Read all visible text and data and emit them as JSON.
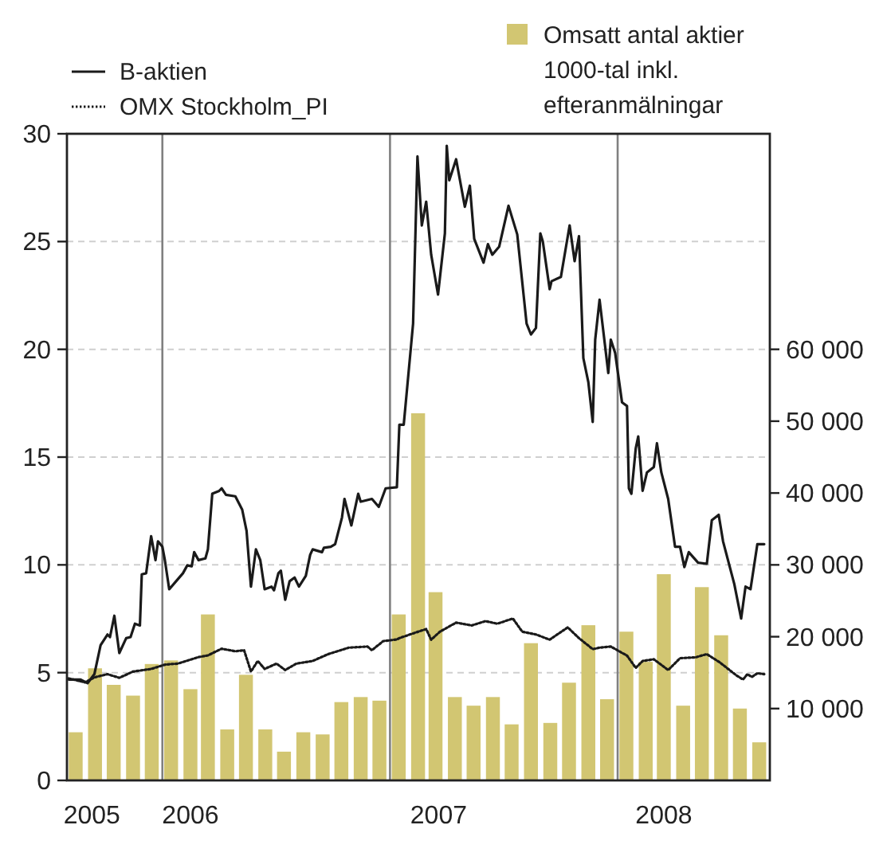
{
  "chart_data": {
    "type": "line",
    "legend": "top",
    "grid": "y",
    "xlim": [
      "2005-08-01",
      "2008-09-01"
    ],
    "xticks": [
      {
        "value": "2005-09-10",
        "label": "2005"
      },
      {
        "value": "2006-02-15",
        "label": "2006"
      },
      {
        "value": "2007-03-20",
        "label": "2007"
      },
      {
        "value": "2008-03-15",
        "label": "2008"
      }
    ],
    "ylim": [
      0,
      30
    ],
    "yticks": [
      0,
      5,
      10,
      15,
      20,
      25,
      30
    ],
    "y2lim": [
      0,
      90000
    ],
    "y2ticks": [
      {
        "value": 10000,
        "label": "10 000"
      },
      {
        "value": 20000,
        "label": "20 000"
      },
      {
        "value": 30000,
        "label": "30 000"
      },
      {
        "value": 40000,
        "label": "40 000"
      },
      {
        "value": 50000,
        "label": "50 000"
      },
      {
        "value": 60000,
        "label": "60 000"
      }
    ],
    "ref_lines": [
      {
        "axis": "x",
        "value": "2006-01-01",
        "color": "#808080"
      },
      {
        "axis": "x",
        "value": "2007-01-01",
        "color": "#808080"
      },
      {
        "axis": "x",
        "value": "2008-01-01",
        "color": "#808080"
      }
    ],
    "series": [
      {
        "type": "bar",
        "axis": "y2",
        "name": "Omsatt antal aktier\n1000-tal inkl.\nefteranmälningar",
        "color": "#d2c672",
        "x": [
          "2005-08-15",
          "2005-09-15",
          "2005-10-15",
          "2005-11-15",
          "2005-12-15",
          "2006-01-15",
          "2006-02-15",
          "2006-03-15",
          "2006-04-15",
          "2006-05-15",
          "2006-06-15",
          "2006-07-15",
          "2006-08-15",
          "2006-09-15",
          "2006-10-15",
          "2006-11-15",
          "2006-12-15",
          "2007-01-15",
          "2007-02-15",
          "2007-03-15",
          "2007-04-15",
          "2007-05-15",
          "2007-06-15",
          "2007-07-15",
          "2007-08-15",
          "2007-09-15",
          "2007-10-15",
          "2007-11-15",
          "2007-12-15",
          "2008-01-15",
          "2008-02-15",
          "2008-03-15",
          "2008-04-15",
          "2008-05-15",
          "2008-06-15",
          "2008-07-15",
          "2008-08-15"
        ],
        "values": [
          6700,
          15600,
          13300,
          11800,
          16200,
          16700,
          12700,
          23100,
          7100,
          14700,
          7100,
          4000,
          6700,
          6400,
          10900,
          11600,
          11100,
          23100,
          51100,
          26200,
          11600,
          10400,
          11600,
          7800,
          19100,
          8000,
          13600,
          21600,
          11300,
          20700,
          16500,
          28700,
          10400,
          26900,
          20200,
          10000,
          5300
        ]
      },
      {
        "name": "B-aktien",
        "color": "#1a1a1a",
        "x": [
          "2005-08-04",
          "2005-08-23",
          "2005-09-03",
          "2005-09-14",
          "2005-09-24",
          "2005-10-05",
          "2005-10-09",
          "2005-10-16",
          "2005-10-24",
          "2005-11-04",
          "2005-11-11",
          "2005-11-18",
          "2005-11-26",
          "2005-11-29",
          "2005-12-06",
          "2005-12-14",
          "2005-12-21",
          "2005-12-25",
          "2006-01-01",
          "2006-01-05",
          "2006-01-12",
          "2006-01-23",
          "2006-02-03",
          "2006-02-10",
          "2006-02-17",
          "2006-02-21",
          "2006-02-28",
          "2006-03-11",
          "2006-03-15",
          "2006-03-22",
          "2006-04-02",
          "2006-04-06",
          "2006-04-13",
          "2006-04-28",
          "2006-05-09",
          "2006-05-16",
          "2006-05-23",
          "2006-05-31",
          "2006-06-07",
          "2006-06-14",
          "2006-06-25",
          "2006-06-29",
          "2006-07-06",
          "2006-07-10",
          "2006-07-17",
          "2006-07-24",
          "2006-08-01",
          "2006-08-08",
          "2006-08-19",
          "2006-08-26",
          "2006-08-30",
          "2006-09-14",
          "2006-09-17",
          "2006-09-28",
          "2006-10-05",
          "2006-10-16",
          "2006-10-20",
          "2006-10-31",
          "2006-11-11",
          "2006-11-15",
          "2006-12-03",
          "2006-12-14",
          "2006-12-25",
          "2007-01-12",
          "2007-01-16",
          "2007-01-23",
          "2007-02-07",
          "2007-02-14",
          "2007-02-21",
          "2007-02-28",
          "2007-03-08",
          "2007-03-19",
          "2007-03-30",
          "2007-04-02",
          "2007-04-06",
          "2007-04-17",
          "2007-05-01",
          "2007-05-09",
          "2007-05-16",
          "2007-05-31",
          "2007-06-07",
          "2007-06-14",
          "2007-06-25",
          "2007-07-10",
          "2007-07-24",
          "2007-08-08",
          "2007-08-15",
          "2007-08-23",
          "2007-08-30",
          "2007-09-03",
          "2007-09-14",
          "2007-09-17",
          "2007-10-02",
          "2007-10-16",
          "2007-10-24",
          "2007-10-31",
          "2007-11-07",
          "2007-11-15",
          "2007-11-22",
          "2007-11-26",
          "2007-12-03",
          "2007-12-17",
          "2007-12-21",
          "2007-12-28",
          "2008-01-08",
          "2008-01-16",
          "2008-01-19",
          "2008-01-23",
          "2008-01-30",
          "2008-02-03",
          "2008-02-10",
          "2008-02-17",
          "2008-02-28",
          "2008-03-04",
          "2008-03-11",
          "2008-03-22",
          "2008-04-02",
          "2008-04-10",
          "2008-04-17",
          "2008-04-24",
          "2008-05-09",
          "2008-05-23",
          "2008-05-31",
          "2008-06-11",
          "2008-06-18",
          "2008-07-06",
          "2008-07-17",
          "2008-07-24",
          "2008-08-01",
          "2008-08-12",
          "2008-08-23"
        ],
        "values": [
          4.68,
          4.68,
          4.51,
          4.93,
          6.28,
          6.77,
          6.65,
          7.64,
          5.91,
          6.6,
          6.65,
          7.27,
          7.19,
          9.56,
          9.61,
          11.33,
          10.22,
          11.09,
          10.84,
          10.22,
          8.87,
          9.24,
          9.61,
          9.98,
          9.93,
          10.59,
          10.22,
          10.3,
          10.72,
          13.3,
          13.43,
          13.55,
          13.25,
          13.18,
          12.56,
          11.58,
          8.99,
          10.72,
          10.22,
          8.87,
          8.99,
          8.82,
          9.61,
          9.73,
          8.38,
          9.24,
          9.41,
          8.99,
          9.49,
          10.47,
          10.72,
          10.59,
          10.79,
          10.84,
          10.96,
          12.2,
          13.06,
          11.83,
          13.3,
          12.93,
          13.06,
          12.69,
          13.55,
          13.6,
          16.5,
          16.5,
          21.19,
          28.95,
          25.75,
          26.85,
          24.39,
          22.54,
          25.38,
          29.44,
          27.84,
          28.82,
          26.61,
          27.59,
          25.13,
          24.02,
          24.88,
          24.39,
          24.76,
          26.66,
          25.33,
          21.19,
          20.69,
          20.99,
          25.38,
          25.0,
          22.79,
          23.16,
          23.36,
          25.75,
          24.09,
          25.25,
          19.59,
          18.48,
          16.63,
          20.45,
          22.3,
          18.9,
          20.45,
          19.83,
          17.54,
          17.37,
          13.55,
          13.3,
          15.4,
          15.96,
          13.43,
          14.29,
          14.54,
          15.64,
          14.29,
          13.06,
          10.84,
          10.84,
          9.9,
          10.59,
          10.1,
          10.05,
          12.07,
          12.32,
          11.09,
          9.11,
          7.51,
          8.99,
          8.87,
          10.96,
          10.96
        ]
      },
      {
        "name": "OMX Stockholm_PI",
        "color": "#1a1a1a",
        "line_style": "dotted",
        "x": [
          "2005-08-04",
          "2005-08-30",
          "2005-09-14",
          "2005-10-05",
          "2005-10-24",
          "2005-11-15",
          "2005-12-14",
          "2006-01-05",
          "2006-01-26",
          "2006-02-28",
          "2006-03-15",
          "2006-04-06",
          "2006-04-28",
          "2006-05-12",
          "2006-05-23",
          "2006-06-03",
          "2006-06-14",
          "2006-07-03",
          "2006-07-17",
          "2006-08-04",
          "2006-08-30",
          "2006-09-24",
          "2006-10-27",
          "2006-11-26",
          "2006-12-03",
          "2006-12-21",
          "2007-01-12",
          "2007-01-16",
          "2007-02-10",
          "2007-02-28",
          "2007-03-08",
          "2007-03-22",
          "2007-04-17",
          "2007-05-12",
          "2007-06-03",
          "2007-06-22",
          "2007-07-17",
          "2007-08-01",
          "2007-08-23",
          "2007-09-14",
          "2007-10-13",
          "2007-10-31",
          "2007-11-22",
          "2007-12-03",
          "2007-12-21",
          "2008-01-16",
          "2008-01-30",
          "2008-02-10",
          "2008-02-28",
          "2008-03-22",
          "2008-04-10",
          "2008-05-05",
          "2008-05-23",
          "2008-06-13",
          "2008-07-09",
          "2008-07-20",
          "2008-07-27",
          "2008-08-03",
          "2008-08-12",
          "2008-08-23"
        ],
        "values": [
          4.73,
          4.55,
          4.78,
          4.93,
          4.76,
          5.05,
          5.17,
          5.37,
          5.42,
          5.72,
          5.8,
          6.11,
          5.99,
          6.04,
          5.05,
          5.54,
          5.17,
          5.42,
          5.12,
          5.42,
          5.54,
          5.86,
          6.16,
          6.21,
          6.04,
          6.46,
          6.54,
          6.6,
          6.85,
          7.02,
          6.53,
          6.9,
          7.32,
          7.19,
          7.39,
          7.27,
          7.51,
          6.9,
          6.77,
          6.53,
          7.1,
          6.6,
          6.09,
          6.16,
          6.21,
          5.79,
          5.22,
          5.54,
          5.62,
          5.12,
          5.67,
          5.71,
          5.86,
          5.47,
          4.88,
          4.68,
          4.93,
          4.8,
          4.97,
          4.93
        ]
      }
    ]
  }
}
